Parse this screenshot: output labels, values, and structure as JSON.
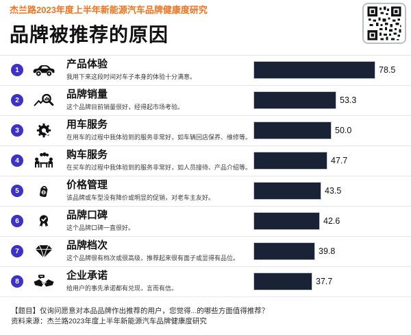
{
  "header": {
    "research_label": "杰兰路2023年度上半年新能源汽车品牌健康度研究",
    "title": "品牌被推荐的原因"
  },
  "rows": [
    {
      "rank": "1",
      "label": "产品体验",
      "desc": "我用下来这段时间对车子本身的体验十分满意。",
      "value": "78.5",
      "icon": "car-icon"
    },
    {
      "rank": "2",
      "label": "品牌销量",
      "desc": "这个品牌目前销量很好，经得起市场考验。",
      "value": "53.3",
      "icon": "sales-chart-magnifier-icon"
    },
    {
      "rank": "3",
      "label": "用车服务",
      "desc": "在用车的过程中我体验到的服务非常好，如车辆回店保养、维修等。",
      "value": "50.0",
      "icon": "gear-wrench-icon"
    },
    {
      "rank": "4",
      "label": "购车服务",
      "desc": "在买车的过程中我体验到的服务非常好，如人员接待、产品介绍等。",
      "value": "47.7",
      "icon": "negotiation-icon"
    },
    {
      "rank": "5",
      "label": "价格管理",
      "desc": "该品牌或车型没有降价或明显的促销，对老车主友好。",
      "value": "43.5",
      "icon": "price-tag-icon"
    },
    {
      "rank": "6",
      "label": "品牌口碑",
      "desc": "这个品牌口碑一直很好。",
      "value": "42.6",
      "icon": "medal-icon"
    },
    {
      "rank": "7",
      "label": "品牌档次",
      "desc": "这个品牌很有档次或很高级，推荐起来很有面子或显得有品位。",
      "value": "39.8",
      "icon": "diamond-icon"
    },
    {
      "rank": "8",
      "label": "企业承诺",
      "desc": "给用户的事先承诺都有兑现，言而有信。",
      "value": "37.7",
      "icon": "handshake-icon"
    }
  ],
  "chart_data": {
    "type": "bar",
    "orientation": "horizontal",
    "title": "品牌被推荐的原因",
    "subtitle": "杰兰路2023年度上半年新能源汽车品牌健康度研究",
    "categories": [
      "产品体验",
      "品牌销量",
      "用车服务",
      "购车服务",
      "价格管理",
      "品牌口碑",
      "品牌档次",
      "企业承诺"
    ],
    "values": [
      78.5,
      53.3,
      50.0,
      47.7,
      43.5,
      42.6,
      39.8,
      37.7
    ],
    "xlim": [
      0,
      100
    ],
    "grid": false,
    "legend": false,
    "bar_color": "#1a2336"
  },
  "footer": {
    "question": "【题目】仅询问愿意对本品品牌作出推荐的用户，您觉得...的哪些方面值得推荐？",
    "source": "资料来源：杰兰路2023年度上半年新能源汽车品牌健康度研究"
  },
  "colors": {
    "accent_orange": "#f0731d",
    "bar_navy": "#1a2336",
    "rank_indigo": "#3e31c8",
    "separator": "#e3e5e8"
  }
}
